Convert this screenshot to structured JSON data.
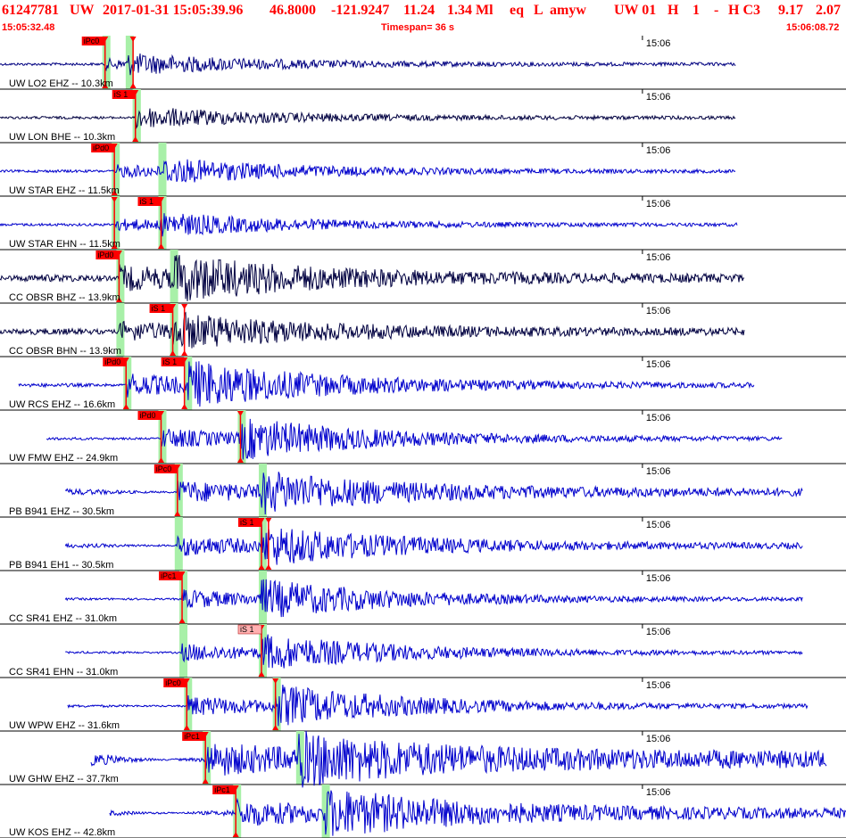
{
  "header": {
    "event_id": "61247781",
    "network": "UW",
    "origin": "2017-01-31 15:05:39.96",
    "lat": "46.8000",
    "lon": "-121.9247",
    "depth": "11.24",
    "magnitude": "1.34 Ml",
    "event_type": "eq",
    "location_flag": "L",
    "user": "amyw",
    "solution": "UW 01",
    "quality": "H",
    "field1": "1",
    "field2": "-",
    "field3": "H C3",
    "rms1": "9.17",
    "rms2": "2.07",
    "start_time": "15:05:32.48",
    "timespan": "Timespan=  36 s",
    "end_time": "15:06:08.72"
  },
  "colors": {
    "header_text": "#ff0000",
    "trace_blue": "#0000cc",
    "trace_dark": "#000040",
    "pick_red": "#ff0000",
    "pick_pink": "#ffb0b0",
    "window_green": "#a8f0a8",
    "divider": "#000000"
  },
  "chart_data": {
    "type": "line",
    "title": "61247781 UW 2017-01-31 15:05:39.96",
    "xlabel": "",
    "ylabel": "",
    "xlim": [
      "15:05:32.48",
      "15:06:08.72"
    ],
    "tick_label": "15:06",
    "tick_time_offset_s": 27.52,
    "timespan_s": 36.24,
    "series": [
      {
        "name": "UW LO2 EHZ -- 10.3km",
        "color": "trace_dark_blue",
        "start_s": 0.0,
        "end_s": 31.5,
        "p_s": 4.5,
        "s_s": 5.5,
        "amp": 0.35,
        "noise": 0.02,
        "picks": [
          {
            "label": "iPc0",
            "t": 4.5
          },
          {
            "label": "",
            "t": 5.7
          }
        ]
      },
      {
        "name": "UW LON BHE -- 10.3km",
        "color": "trace_dark",
        "start_s": 0.0,
        "end_s": 31.5,
        "p_s": 5.8,
        "s_s": 5.8,
        "amp": 0.35,
        "noise": 0.02,
        "picks": [
          {
            "label": "iS 1",
            "t": 5.8
          }
        ]
      },
      {
        "name": "UW STAR EHZ -- 11.5km",
        "color": "trace_blue",
        "start_s": 0.0,
        "end_s": 31.5,
        "p_s": 4.9,
        "s_s": 6.9,
        "amp": 0.45,
        "noise": 0.02,
        "picks": [
          {
            "label": "iPd0",
            "t": 4.9
          }
        ]
      },
      {
        "name": "UW STAR EHN -- 11.5km",
        "color": "trace_blue",
        "start_s": 0.0,
        "end_s": 31.6,
        "p_s": 4.9,
        "s_s": 6.9,
        "amp": 0.4,
        "noise": 0.02,
        "picks": [
          {
            "label": "iS 1",
            "t": 6.9
          },
          {
            "label": "",
            "t": 4.9
          }
        ]
      },
      {
        "name": "CC OBSR BHZ -- 13.9km",
        "color": "trace_dark",
        "start_s": 0.0,
        "end_s": 31.9,
        "p_s": 5.1,
        "s_s": 7.4,
        "amp": 0.8,
        "noise": 0.12,
        "picks": [
          {
            "label": "iPd0",
            "t": 5.1
          }
        ]
      },
      {
        "name": "CC OBSR BHN -- 13.9km",
        "color": "trace_dark",
        "start_s": 0.0,
        "end_s": 31.9,
        "p_s": 5.1,
        "s_s": 7.4,
        "amp": 0.6,
        "noise": 0.1,
        "picks": [
          {
            "label": "iS 1",
            "t": 7.4
          },
          {
            "label": "",
            "t": 7.9
          }
        ]
      },
      {
        "name": "UW RCS EHZ -- 16.6km",
        "color": "trace_blue",
        "start_s": 0.8,
        "end_s": 32.3,
        "p_s": 5.4,
        "s_s": 8.0,
        "amp": 0.85,
        "noise": 0.04,
        "picks": [
          {
            "label": "iPd0",
            "t": 5.4
          },
          {
            "label": "iS 1",
            "t": 7.9
          }
        ]
      },
      {
        "name": "UW FMW EHZ -- 24.9km",
        "color": "trace_blue",
        "start_s": 2.0,
        "end_s": 33.5,
        "p_s": 6.9,
        "s_s": 10.3,
        "amp": 0.75,
        "noise": 0.02,
        "picks": [
          {
            "label": "iPd0",
            "t": 6.9
          },
          {
            "label": "",
            "t": 10.3
          }
        ]
      },
      {
        "name": "PB B941 EHZ -- 30.5km",
        "color": "trace_blue",
        "start_s": 2.8,
        "end_s": 34.4,
        "p_s": 7.6,
        "s_s": 11.2,
        "amp": 0.7,
        "noise": 0.1,
        "picks": [
          {
            "label": "iPc0",
            "t": 7.6
          }
        ]
      },
      {
        "name": "PB B941 EH1 -- 30.5km",
        "color": "trace_blue",
        "start_s": 2.8,
        "end_s": 34.4,
        "p_s": 7.6,
        "s_s": 11.2,
        "amp": 0.7,
        "noise": 0.06,
        "picks": [
          {
            "label": "iS 1",
            "t": 11.2
          },
          {
            "label": "",
            "t": 11.5
          }
        ]
      },
      {
        "name": "CC SR41 EHZ -- 31.0km",
        "color": "trace_blue",
        "start_s": 2.8,
        "end_s": 34.4,
        "p_s": 7.8,
        "s_s": 11.2,
        "amp": 0.7,
        "noise": 0.01,
        "picks": [
          {
            "label": "iPc1",
            "t": 7.8
          }
        ]
      },
      {
        "name": "CC SR41 EHN -- 31.0km",
        "color": "trace_blue",
        "start_s": 2.8,
        "end_s": 34.4,
        "p_s": 7.8,
        "s_s": 11.2,
        "amp": 0.65,
        "noise": 0.01,
        "picks": [
          {
            "label": "iS 1",
            "t": 11.2,
            "weight": "low"
          }
        ]
      },
      {
        "name": "UW WPW EHZ -- 31.6km",
        "color": "trace_blue",
        "start_s": 2.9,
        "end_s": 34.6,
        "p_s": 8.0,
        "s_s": 11.8,
        "amp": 0.75,
        "noise": 0.02,
        "picks": [
          {
            "label": "iPc0",
            "t": 8.0
          },
          {
            "label": "",
            "t": 11.8
          }
        ]
      },
      {
        "name": "UW GHW EHZ -- 37.7km",
        "color": "trace_blue",
        "start_s": 3.9,
        "end_s": 35.4,
        "p_s": 8.8,
        "s_s": 12.8,
        "amp": 0.8,
        "noise": 0.3,
        "picks": [
          {
            "label": "iPc1",
            "t": 8.8
          }
        ]
      },
      {
        "name": "UW KOS EHZ -- 42.8km",
        "color": "trace_blue",
        "start_s": 4.7,
        "end_s": 36.24,
        "p_s": 10.1,
        "s_s": 13.9,
        "amp": 0.8,
        "noise": 0.15,
        "picks": [
          {
            "label": "iPc1",
            "t": 10.1
          }
        ]
      }
    ]
  }
}
